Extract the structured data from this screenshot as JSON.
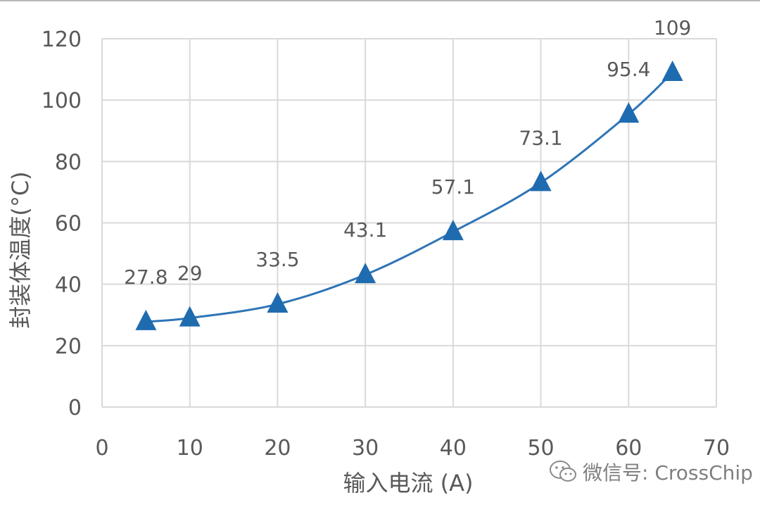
{
  "chart_data": {
    "type": "line",
    "title": "",
    "xlabel": "输入电流 (A)",
    "ylabel": "封装体温度(°C)",
    "xlim": [
      0,
      70
    ],
    "ylim": [
      0,
      120
    ],
    "xticks": [
      0,
      10,
      20,
      30,
      40,
      50,
      60,
      70
    ],
    "yticks": [
      0,
      20,
      40,
      60,
      80,
      100,
      120
    ],
    "grid": true,
    "legend": "none",
    "series": [
      {
        "x": [
          5,
          10,
          20,
          30,
          40,
          50,
          60,
          65
        ],
        "y": [
          27.8,
          29,
          33.5,
          43.1,
          57.1,
          73.1,
          95.4,
          109
        ],
        "labels": [
          "27.8",
          "29",
          "33.5",
          "43.1",
          "57.1",
          "73.1",
          "95.4",
          "109"
        ],
        "marker": "triangle",
        "color": "#2e75b6"
      }
    ]
  },
  "watermark": {
    "text": "微信号: CrossChip",
    "icon": "wechat-icon"
  }
}
